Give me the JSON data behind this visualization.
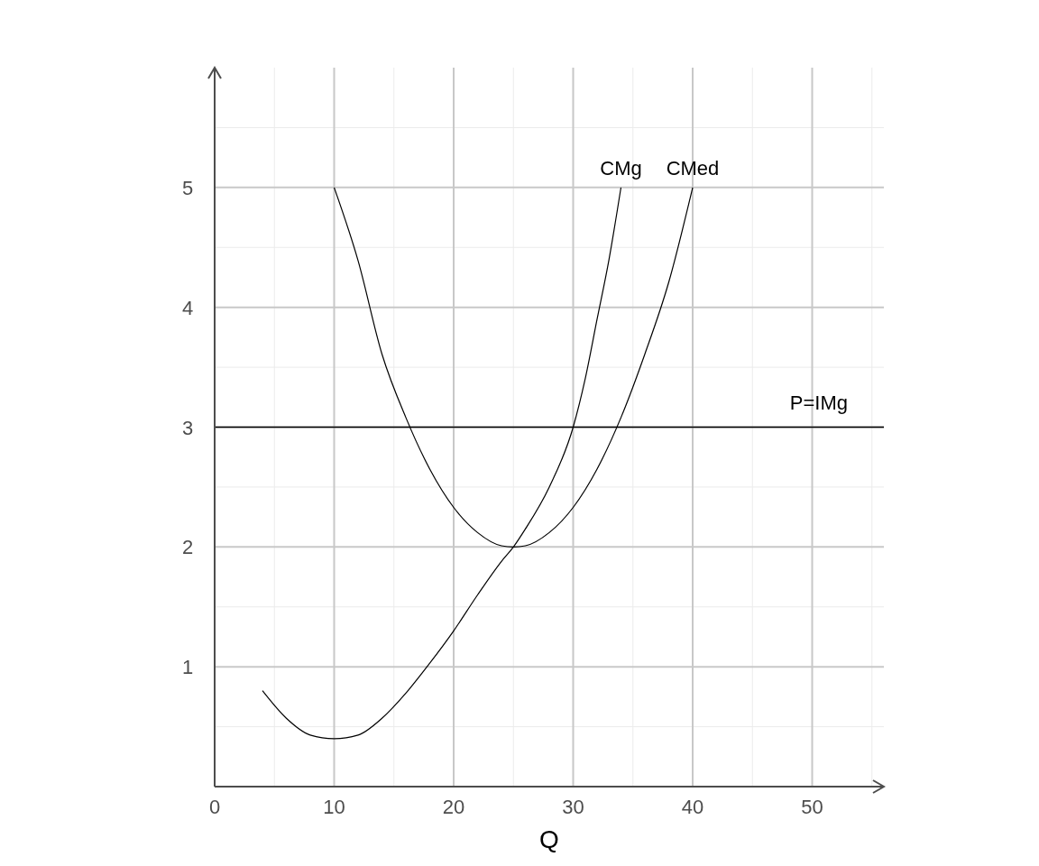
{
  "chart_data": {
    "type": "line",
    "xlabel": "Q",
    "xlim": [
      0,
      56
    ],
    "ylim": [
      0,
      6
    ],
    "xticks": [
      0,
      10,
      20,
      30,
      40,
      50
    ],
    "yticks": [
      1,
      2,
      3,
      4,
      5
    ],
    "grid": true,
    "marker": "none",
    "line_style": "solid",
    "series": [
      {
        "name": "CMg",
        "color": "#000000",
        "x": [
          4,
          6,
          8,
          10,
          12,
          14,
          16,
          18,
          20,
          22,
          24,
          25,
          26,
          28,
          30,
          31,
          32,
          33,
          34
        ],
        "values": [
          0.8,
          0.57,
          0.43,
          0.4,
          0.43,
          0.57,
          0.78,
          1.03,
          1.3,
          1.6,
          1.88,
          2.0,
          2.15,
          2.5,
          3.0,
          3.4,
          3.9,
          4.4,
          5.0
        ]
      },
      {
        "name": "CMed",
        "color": "#000000",
        "x": [
          10,
          12,
          14,
          16,
          18,
          20,
          22,
          24,
          25,
          26,
          28,
          30,
          32,
          34,
          36,
          38,
          40
        ],
        "values": [
          5.0,
          4.39,
          3.61,
          3.08,
          2.65,
          2.33,
          2.12,
          2.01,
          2.0,
          2.01,
          2.12,
          2.33,
          2.65,
          3.08,
          3.61,
          4.21,
          5.0
        ]
      }
    ],
    "ref_lines": [
      {
        "axis": "y",
        "value": 3,
        "label": "P=IMg",
        "color": "#000000"
      }
    ]
  }
}
